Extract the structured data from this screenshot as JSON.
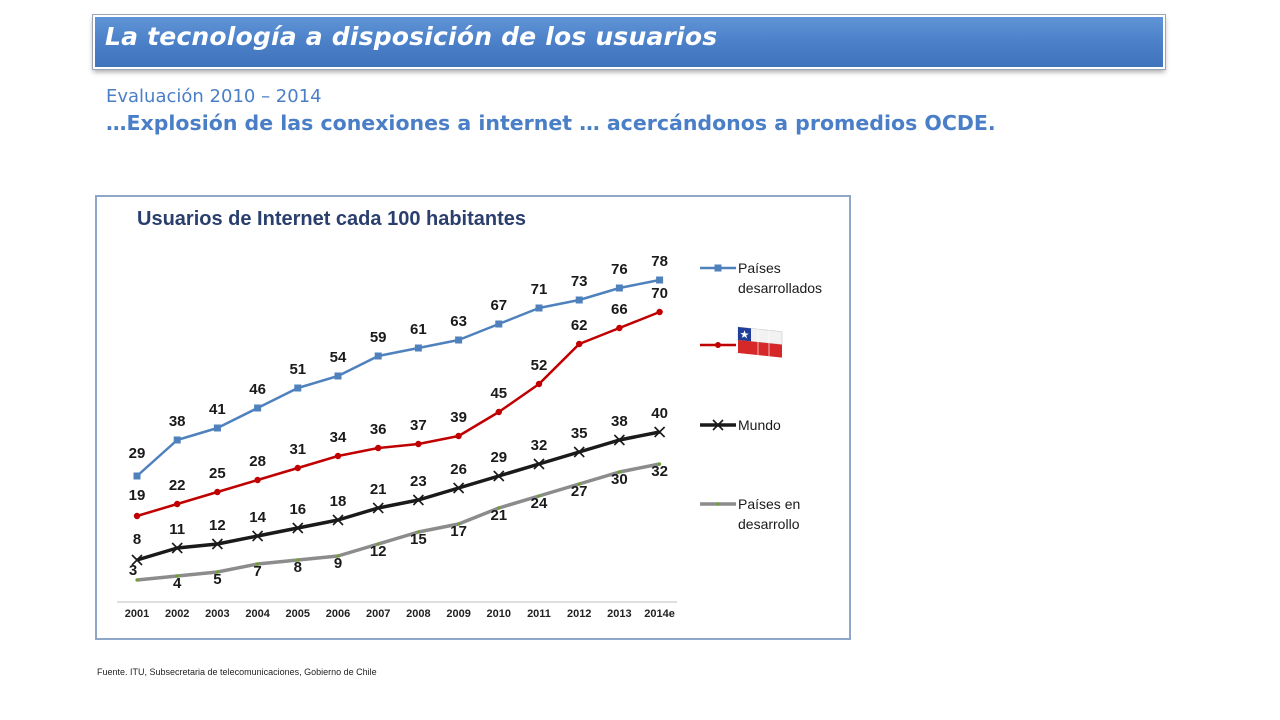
{
  "header": {
    "title": "La tecnología a disposición de los usuarios",
    "subtitle": "Evaluación 2010 – 2014",
    "headline": "…Explosión de las conexiones a internet … acercándonos a promedios OCDE."
  },
  "footer": {
    "source": "Fuente. ITU, Subsecretaria de telecomunicaciones, Gobierno de Chile"
  },
  "chart_data": {
    "type": "line",
    "title": "Usuarios  de Internet cada 100 habitantes",
    "xlabel": "",
    "ylabel": "",
    "ylim": [
      0,
      80
    ],
    "grid": false,
    "legend_position": "right",
    "x": [
      "2001",
      "2002",
      "2003",
      "2004",
      "2005",
      "2006",
      "2007",
      "2008",
      "2009",
      "2010",
      "2011",
      "2012",
      "2013",
      "2014e"
    ],
    "series": [
      {
        "name": "Países desarrollados",
        "legend_lines": [
          "Países",
          "desarrollados"
        ],
        "color": "#4f81bd",
        "marker": "square",
        "values": [
          29,
          38,
          41,
          46,
          51,
          54,
          59,
          61,
          63,
          67,
          71,
          73,
          76,
          78
        ]
      },
      {
        "name": "",
        "legend_icon": "chile-flag-icon",
        "color": "#c00000",
        "marker": "circle",
        "values": [
          19,
          22,
          25,
          28,
          31,
          34,
          36,
          37,
          39,
          45,
          52,
          62,
          66,
          70
        ]
      },
      {
        "name": "Mundo",
        "legend_lines": [
          "Mundo"
        ],
        "color": "#1a1a1a",
        "marker": "x",
        "values": [
          8,
          11,
          12,
          14,
          16,
          18,
          21,
          23,
          26,
          29,
          32,
          35,
          38,
          40
        ]
      },
      {
        "name": "Países en desarrollo",
        "legend_lines": [
          "Países en",
          "desarrollo"
        ],
        "color": "#8c8c8c",
        "marker": "dot",
        "values": [
          3,
          4,
          5,
          7,
          8,
          9,
          12,
          15,
          17,
          21,
          24,
          27,
          30,
          32
        ]
      }
    ]
  }
}
